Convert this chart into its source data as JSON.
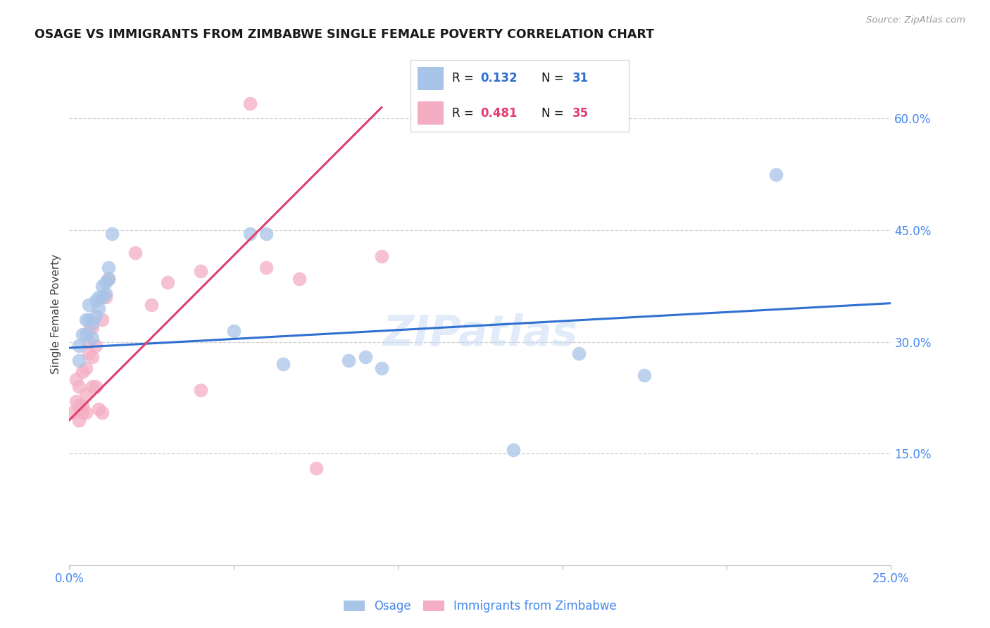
{
  "title": "OSAGE VS IMMIGRANTS FROM ZIMBABWE SINGLE FEMALE POVERTY CORRELATION CHART",
  "source": "Source: ZipAtlas.com",
  "ylabel": "Single Female Poverty",
  "right_yticks": [
    "60.0%",
    "45.0%",
    "30.0%",
    "15.0%"
  ],
  "right_ytick_vals": [
    0.6,
    0.45,
    0.3,
    0.15
  ],
  "x_min": 0.0,
  "x_max": 0.25,
  "y_min": 0.0,
  "y_max": 0.675,
  "blue_color": "#a8c4e8",
  "pink_color": "#f4aec4",
  "blue_line_color": "#3070d0",
  "pink_line_color": "#e04070",
  "watermark": "ZIPatlas",
  "legend_label_blue": "Osage",
  "legend_label_pink": "Immigrants from Zimbabwe",
  "blue_scatter_x": [
    0.003,
    0.003,
    0.004,
    0.005,
    0.005,
    0.006,
    0.006,
    0.007,
    0.007,
    0.008,
    0.008,
    0.009,
    0.009,
    0.01,
    0.01,
    0.011,
    0.011,
    0.012,
    0.012,
    0.013,
    0.05,
    0.055,
    0.06,
    0.065,
    0.085,
    0.09,
    0.095,
    0.135,
    0.155,
    0.175,
    0.215
  ],
  "blue_scatter_y": [
    0.295,
    0.275,
    0.31,
    0.33,
    0.31,
    0.33,
    0.35,
    0.325,
    0.305,
    0.355,
    0.335,
    0.36,
    0.345,
    0.36,
    0.375,
    0.365,
    0.38,
    0.4,
    0.385,
    0.445,
    0.315,
    0.445,
    0.445,
    0.27,
    0.275,
    0.28,
    0.265,
    0.155,
    0.285,
    0.255,
    0.525
  ],
  "pink_scatter_x": [
    0.001,
    0.002,
    0.002,
    0.003,
    0.003,
    0.003,
    0.004,
    0.004,
    0.004,
    0.005,
    0.005,
    0.005,
    0.006,
    0.006,
    0.006,
    0.007,
    0.007,
    0.007,
    0.008,
    0.008,
    0.009,
    0.01,
    0.01,
    0.011,
    0.012,
    0.02,
    0.025,
    0.03,
    0.04,
    0.04,
    0.055,
    0.06,
    0.07,
    0.075,
    0.095
  ],
  "pink_scatter_y": [
    0.205,
    0.22,
    0.25,
    0.195,
    0.215,
    0.24,
    0.215,
    0.26,
    0.205,
    0.205,
    0.23,
    0.265,
    0.3,
    0.285,
    0.315,
    0.28,
    0.32,
    0.24,
    0.295,
    0.24,
    0.21,
    0.205,
    0.33,
    0.36,
    0.385,
    0.42,
    0.35,
    0.38,
    0.235,
    0.395,
    0.62,
    0.4,
    0.385,
    0.13,
    0.415
  ],
  "blue_trend_x": [
    0.0,
    0.25
  ],
  "blue_trend_y": [
    0.292,
    0.352
  ],
  "pink_trend_x": [
    0.0,
    0.095
  ],
  "pink_trend_y": [
    0.195,
    0.615
  ],
  "background_color": "#ffffff",
  "grid_color": "#d0d0d0",
  "title_color": "#1a1a1a",
  "axis_label_color": "#4488ee",
  "right_axis_color": "#4488ee",
  "legend_R_color": "#111111",
  "legend_val_blue": "#3070d0",
  "legend_val_pink": "#e04070"
}
